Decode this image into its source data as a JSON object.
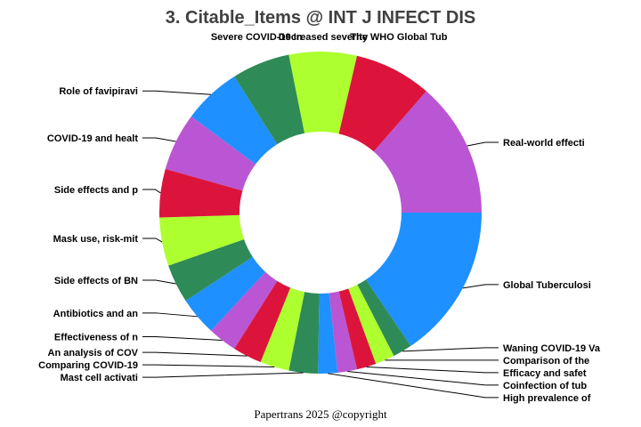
{
  "chart_data": {
    "type": "pie",
    "donut": true,
    "title": "3. Citable_Items @ INT J INFECT DIS",
    "footer": "Papertrans 2025 @copyright",
    "colors": [
      "#1E90FF",
      "#2E8B57",
      "#ADFF2F",
      "#DC143C",
      "#BA55D3"
    ],
    "slices": [
      {
        "label": "Global Tuberculosi",
        "value": 16
      },
      {
        "label": "Waning COVID-19 Va",
        "value": 2
      },
      {
        "label": "Comparison of the",
        "value": 2
      },
      {
        "label": "Efficacy and safet",
        "value": 2
      },
      {
        "label": "Coinfection of tub",
        "value": 2
      },
      {
        "label": "High prevalence of",
        "value": 2
      },
      {
        "label": "Mast cell activati",
        "value": 3
      },
      {
        "label": "Comparing COVID-19",
        "value": 3
      },
      {
        "label": "An analysis of COV",
        "value": 3
      },
      {
        "label": "Effectiveness of n",
        "value": 3
      },
      {
        "label": "Antibiotics and an",
        "value": 4
      },
      {
        "label": "Side effects of BN",
        "value": 4
      },
      {
        "label": "Mask use, risk-mit",
        "value": 5
      },
      {
        "label": "Side effects and p",
        "value": 5
      },
      {
        "label": "COVID-19 and healt",
        "value": 6
      },
      {
        "label": "Role of favipiravi",
        "value": 6
      },
      {
        "label": "Severe COVID-19 In",
        "value": 6
      },
      {
        "label": "Decreased severity",
        "value": 7
      },
      {
        "label": "The WHO Global Tub",
        "value": 8
      },
      {
        "label": "Real-world effecti",
        "value": 14
      }
    ]
  }
}
